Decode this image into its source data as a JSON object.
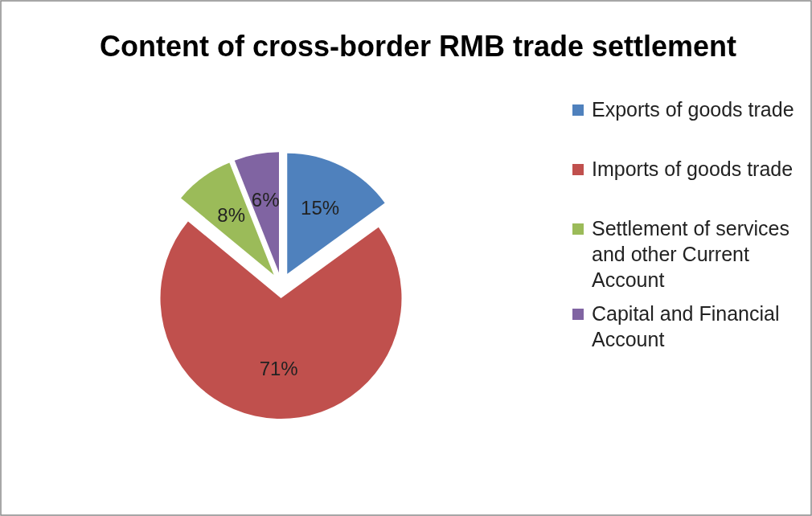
{
  "chart_data": {
    "type": "pie",
    "title": "Content of cross-border RMB trade settlement",
    "categories": [
      "Exports of goods trade",
      "Imports of goods trade",
      "Settlement of services and other Current Account",
      "Capital and Financial Account"
    ],
    "values": [
      15,
      71,
      8,
      6
    ],
    "value_labels": [
      "15%",
      "71%",
      "8%",
      "6%"
    ],
    "colors": [
      "#4f81bd",
      "#c0504d",
      "#9bbb59",
      "#8064a2"
    ],
    "legend": "right"
  }
}
